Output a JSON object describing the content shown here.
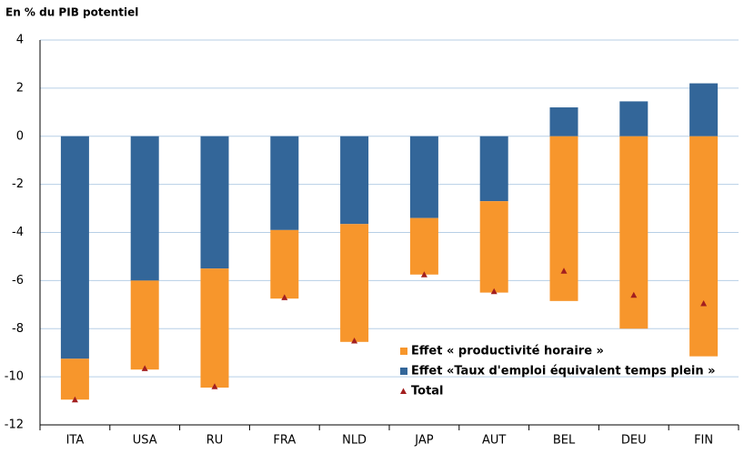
{
  "chart_data": {
    "type": "bar",
    "stacked": true,
    "y_label": "En % du PIB potentiel",
    "categories": [
      "ITA",
      "USA",
      "RU",
      "FRA",
      "NLD",
      "JAP",
      "AUT",
      "BEL",
      "DEU",
      "FIN"
    ],
    "series": [
      {
        "name": "Effet «Taux d'emploi équivalent temps plein »",
        "color": "#336699",
        "mark": "bar",
        "values": [
          -9.25,
          -6.0,
          -5.5,
          -3.9,
          -3.65,
          -3.4,
          -2.7,
          1.2,
          1.45,
          2.2
        ]
      },
      {
        "name": "Effet « productivité horaire »",
        "color": "#f7962c",
        "mark": "bar",
        "values": [
          -1.7,
          -3.7,
          -4.95,
          -2.85,
          -4.9,
          -2.35,
          -3.8,
          -6.85,
          -8.0,
          -9.15
        ]
      },
      {
        "name": "Total",
        "color": "#a31f1f",
        "mark": "triangle",
        "values": [
          -10.95,
          -9.65,
          -10.4,
          -6.7,
          -8.5,
          -5.75,
          -6.45,
          -5.6,
          -6.6,
          -6.95
        ]
      }
    ],
    "legend_order": [
      1,
      0,
      2
    ],
    "ylim": [
      -12,
      4
    ],
    "yticks": [
      -12,
      -10,
      -8,
      -6,
      -4,
      -2,
      0,
      2,
      4
    ],
    "grid": true,
    "legend": "lower right"
  }
}
